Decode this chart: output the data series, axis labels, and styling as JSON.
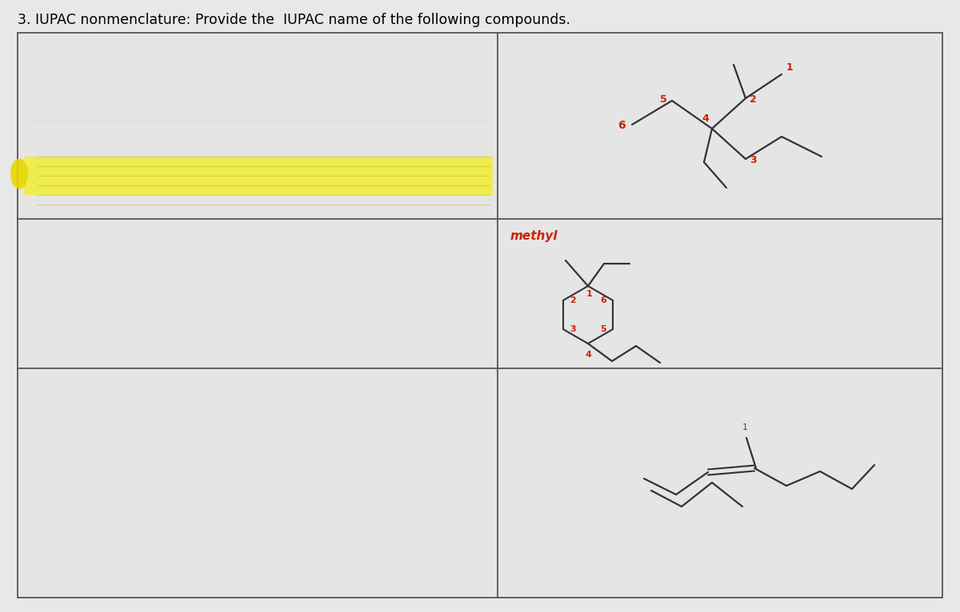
{
  "title": "3. IUPAC nonmenclature: Provide the  IUPAC name of the following compounds.",
  "title_fontsize": 12.5,
  "bg_color": "#e8e8e8",
  "cell_bg": "#eaeaea",
  "grid_color": "#555555",
  "line_color": "#333333",
  "red_color": "#cc2200",
  "highlight_yellow": "#f5f000",
  "yellow_circle": "#e8d800"
}
